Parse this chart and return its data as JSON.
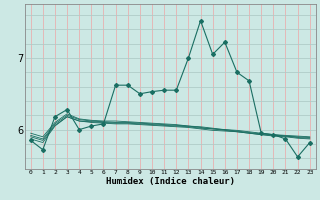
{
  "xlabel": "Humidex (Indice chaleur)",
  "bg_color": "#cce8e4",
  "grid_color_h": "#b0ccc8",
  "grid_color_v": "#e8b0b0",
  "line_color": "#1a6e62",
  "x_ticks": [
    0,
    1,
    2,
    3,
    4,
    5,
    6,
    7,
    8,
    9,
    10,
    11,
    12,
    13,
    14,
    15,
    16,
    17,
    18,
    19,
    20,
    21,
    22,
    23
  ],
  "ylim": [
    5.45,
    7.75
  ],
  "yticks": [
    6,
    7
  ],
  "main_series": [
    5.85,
    5.72,
    6.18,
    6.28,
    6.0,
    6.05,
    6.08,
    6.62,
    6.62,
    6.5,
    6.53,
    6.55,
    6.55,
    7.0,
    7.52,
    7.05,
    7.22,
    6.8,
    6.68,
    5.95,
    5.93,
    5.87,
    5.62,
    5.82
  ],
  "reg_lines": [
    [
      5.87,
      5.82,
      6.05,
      6.18,
      6.12,
      6.1,
      6.09,
      6.08,
      6.08,
      6.07,
      6.06,
      6.05,
      6.04,
      6.03,
      6.01,
      5.99,
      5.98,
      5.97,
      5.95,
      5.93,
      5.91,
      5.9,
      5.88,
      5.87
    ],
    [
      5.9,
      5.85,
      6.06,
      6.18,
      6.12,
      6.11,
      6.1,
      6.09,
      6.09,
      6.08,
      6.07,
      6.06,
      6.05,
      6.04,
      6.02,
      6.01,
      5.99,
      5.97,
      5.95,
      5.93,
      5.92,
      5.91,
      5.89,
      5.88
    ],
    [
      5.92,
      5.87,
      6.08,
      6.2,
      6.14,
      6.12,
      6.11,
      6.1,
      6.1,
      6.09,
      6.08,
      6.07,
      6.06,
      6.05,
      6.03,
      6.01,
      6.0,
      5.98,
      5.96,
      5.94,
      5.93,
      5.91,
      5.9,
      5.89
    ],
    [
      5.95,
      5.9,
      6.1,
      6.22,
      6.15,
      6.13,
      6.12,
      6.12,
      6.11,
      6.1,
      6.09,
      6.08,
      6.07,
      6.05,
      6.04,
      6.02,
      6.0,
      5.99,
      5.97,
      5.95,
      5.93,
      5.92,
      5.91,
      5.9
    ]
  ]
}
